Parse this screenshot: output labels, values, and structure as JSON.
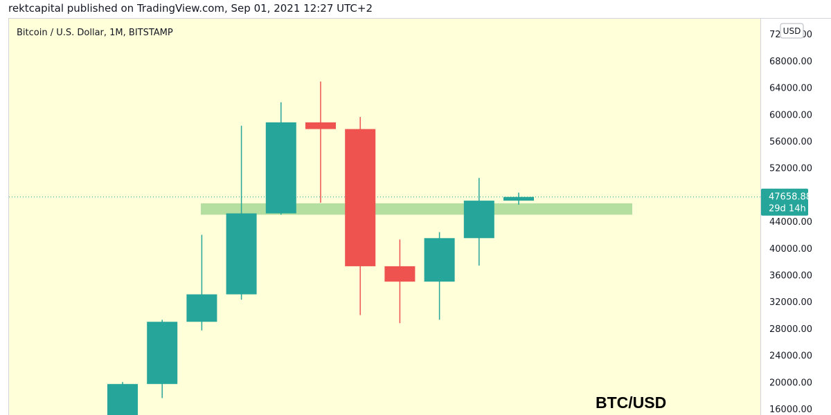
{
  "header": {
    "published_line": "rektcapital published on TradingView.com, Sep 01, 2021 12:27 UTC+2"
  },
  "symbol_title": "Bitcoin / U.S. Dollar, 1M, BITSTAMP",
  "currency_label": "USD",
  "watermark": "BTC/USD",
  "colors": {
    "background": "#ffffd9",
    "up": "#26a69a",
    "down": "#ef5350",
    "zone": "#b5dfa0",
    "price_line": "#26a69a",
    "axis_text": "#131722"
  },
  "chart_data": {
    "type": "candlestick",
    "title": "Bitcoin / U.S. Dollar, 1M, BITSTAMP",
    "interval": "1M",
    "ylim": [
      14000,
      74000
    ],
    "y_ticks": [
      {
        "value": 16000,
        "label": "16000.00"
      },
      {
        "value": 20000,
        "label": "20000.00"
      },
      {
        "value": 24000,
        "label": "24000.00"
      },
      {
        "value": 28000,
        "label": "28000.00"
      },
      {
        "value": 32000,
        "label": "32000.00"
      },
      {
        "value": 36000,
        "label": "36000.00"
      },
      {
        "value": 40000,
        "label": "40000.00"
      },
      {
        "value": 44000,
        "label": "44000.00"
      },
      {
        "value": 52000,
        "label": "52000.00"
      },
      {
        "value": 56000,
        "label": "56000.00"
      },
      {
        "value": 60000,
        "label": "60000.00"
      },
      {
        "value": 64000,
        "label": "64000.00"
      },
      {
        "value": 68000,
        "label": "68000.00"
      },
      {
        "value": 72000,
        "label": "72000.00"
      }
    ],
    "candles": [
      {
        "open": 13800,
        "high": 20000,
        "low": 13500,
        "close": 19700
      },
      {
        "open": 19700,
        "high": 29300,
        "low": 17600,
        "close": 29000
      },
      {
        "open": 29000,
        "high": 42000,
        "low": 27700,
        "close": 33100
      },
      {
        "open": 33100,
        "high": 58300,
        "low": 32300,
        "close": 45200
      },
      {
        "open": 45200,
        "high": 61800,
        "low": 45000,
        "close": 58800
      },
      {
        "open": 58800,
        "high": 64900,
        "low": 46800,
        "close": 57800
      },
      {
        "open": 57800,
        "high": 59600,
        "low": 30000,
        "close": 37300
      },
      {
        "open": 37300,
        "high": 41300,
        "low": 28800,
        "close": 35000
      },
      {
        "open": 35000,
        "high": 42400,
        "low": 29300,
        "close": 41500
      },
      {
        "open": 41500,
        "high": 50500,
        "low": 37400,
        "close": 47100
      },
      {
        "open": 47100,
        "high": 48300,
        "low": 46500,
        "close": 47658.88
      }
    ],
    "support_zone": {
      "low": 45000,
      "high": 46700
    },
    "last_price": {
      "value": 47658.88,
      "label": "47658.88",
      "countdown": "29d 14h"
    }
  }
}
